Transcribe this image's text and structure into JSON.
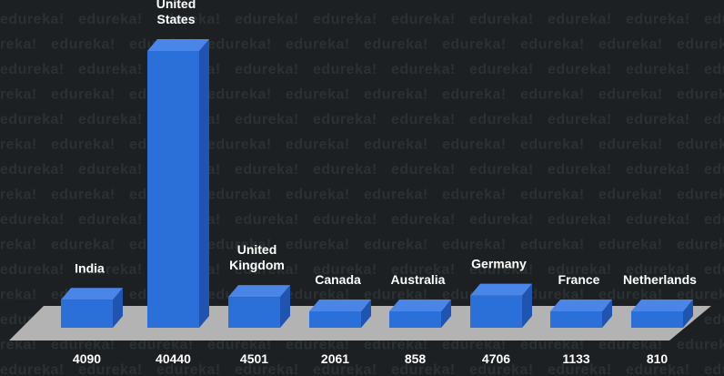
{
  "watermark": "edureka!",
  "colors": {
    "background": "#1c2022",
    "floor": "#b3b3b3",
    "bar_front": "#2b6fd8",
    "bar_top": "#4a86e8",
    "bar_side": "#1f55b0",
    "label": "#ffffff"
  },
  "chart_data": {
    "type": "bar",
    "style": "3d-column",
    "categories": [
      "India",
      "United States",
      "United Kingdom",
      "Canada",
      "Australia",
      "Germany",
      "France",
      "Netherlands"
    ],
    "label_lines": [
      [
        "India"
      ],
      [
        "United",
        "States"
      ],
      [
        "United",
        "Kingdom"
      ],
      [
        "Canada"
      ],
      [
        "Australia"
      ],
      [
        "Germany"
      ],
      [
        "France"
      ],
      [
        "Netherlands"
      ]
    ],
    "values": [
      4090,
      40440,
      4501,
      2061,
      858,
      4706,
      1133,
      810
    ],
    "value_labels": [
      "4090",
      "40440",
      "4501",
      "2061",
      "858",
      "4706",
      "1133",
      "810"
    ],
    "title": "",
    "xlabel": "",
    "ylabel": "",
    "grid": false,
    "legend": "none"
  }
}
